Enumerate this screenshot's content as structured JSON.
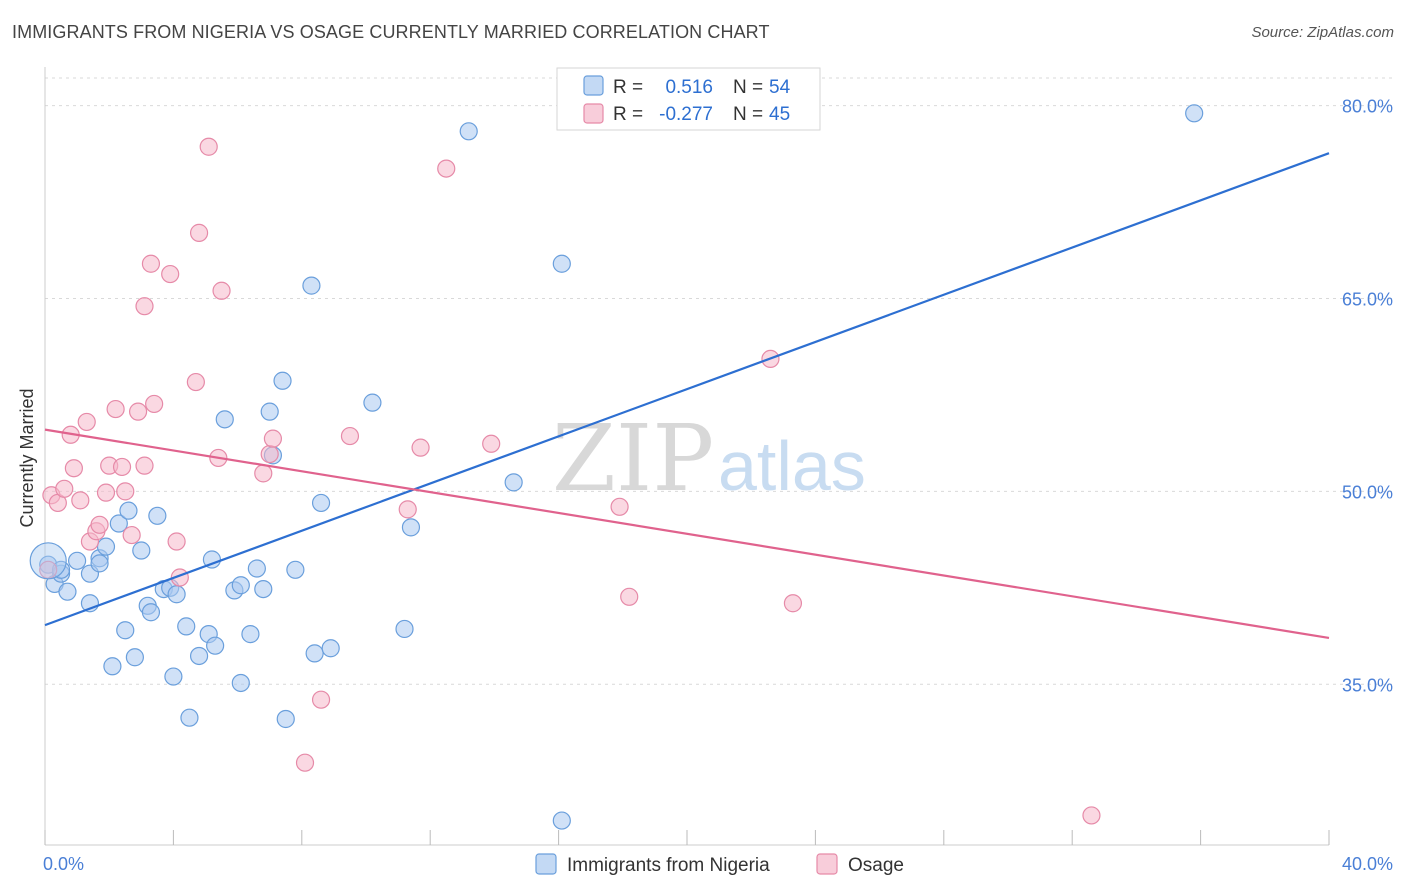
{
  "title": "IMMIGRANTS FROM NIGERIA VS OSAGE CURRENTLY MARRIED CORRELATION CHART",
  "source": "Source: ZipAtlas.com",
  "watermark": {
    "zip": "ZIP",
    "atlas": "atlas"
  },
  "colors": {
    "blue_fill": "#a9c9f0",
    "blue_stroke": "#6a9fdc",
    "blue_line": "#2d6fd1",
    "pink_fill": "#f5b8cb",
    "pink_stroke": "#e68aa8",
    "pink_line": "#e0628d",
    "grid": "#d9d9d9",
    "tick_label": "#4a7fd6"
  },
  "legend": {
    "r_label": "R =",
    "n_label": "N =",
    "items": [
      {
        "r": "0.516",
        "n": "54"
      },
      {
        "r": "-0.277",
        "n": "45"
      }
    ]
  },
  "chart_data": {
    "type": "scatter",
    "title": "IMMIGRANTS FROM NIGERIA VS OSAGE CURRENTLY MARRIED CORRELATION CHART",
    "xlabel": "",
    "ylabel": "Currently Married",
    "xlim": [
      0,
      40
    ],
    "ylim": [
      22.5,
      83
    ],
    "x_tick_labels": [
      "0.0%",
      "40.0%"
    ],
    "y_ticks": [
      35,
      50,
      65,
      80
    ],
    "y_tick_labels": [
      "35.0%",
      "50.0%",
      "65.0%",
      "80.0%"
    ],
    "grid": true,
    "legend_position": "top-center",
    "series": [
      {
        "name": "Immigrants from Nigeria",
        "color": "blue",
        "r": 0.516,
        "n": 54,
        "trendline": {
          "x": [
            0,
            40
          ],
          "y": [
            39.6,
            76.3
          ]
        },
        "points": [
          [
            0.1,
            44.3
          ],
          [
            0.3,
            42.8
          ],
          [
            0.5,
            43.6
          ],
          [
            0.7,
            42.2
          ],
          [
            0.5,
            43.9
          ],
          [
            1.0,
            44.6
          ],
          [
            1.4,
            43.6
          ],
          [
            1.4,
            41.3
          ],
          [
            1.7,
            44.8
          ],
          [
            1.7,
            44.4
          ],
          [
            1.9,
            45.7
          ],
          [
            2.3,
            47.5
          ],
          [
            2.6,
            48.5
          ],
          [
            2.5,
            39.2
          ],
          [
            2.1,
            36.4
          ],
          [
            2.8,
            37.1
          ],
          [
            3.0,
            45.4
          ],
          [
            3.2,
            41.1
          ],
          [
            3.3,
            40.6
          ],
          [
            3.5,
            48.1
          ],
          [
            3.7,
            42.4
          ],
          [
            3.9,
            42.5
          ],
          [
            4.1,
            42.0
          ],
          [
            4.0,
            35.6
          ],
          [
            4.4,
            39.5
          ],
          [
            4.8,
            37.2
          ],
          [
            5.1,
            38.9
          ],
          [
            5.2,
            44.7
          ],
          [
            5.3,
            38.0
          ],
          [
            5.6,
            55.6
          ],
          [
            5.9,
            42.3
          ],
          [
            6.1,
            42.7
          ],
          [
            6.1,
            35.1
          ],
          [
            6.4,
            38.9
          ],
          [
            6.6,
            44.0
          ],
          [
            6.8,
            42.4
          ],
          [
            7.0,
            56.2
          ],
          [
            7.1,
            52.8
          ],
          [
            7.4,
            58.6
          ],
          [
            7.5,
            32.3
          ],
          [
            7.8,
            43.9
          ],
          [
            8.3,
            66.0
          ],
          [
            8.4,
            37.4
          ],
          [
            8.6,
            49.1
          ],
          [
            8.9,
            37.8
          ],
          [
            10.2,
            56.9
          ],
          [
            11.2,
            39.3
          ],
          [
            11.4,
            47.2
          ],
          [
            13.2,
            78.0
          ],
          [
            14.6,
            50.7
          ],
          [
            16.1,
            67.7
          ],
          [
            16.1,
            24.4
          ],
          [
            35.8,
            79.4
          ],
          [
            4.5,
            32.4
          ]
        ]
      },
      {
        "name": "Osage",
        "color": "pink",
        "r": -0.277,
        "n": 45,
        "trendline": {
          "x": [
            0,
            40
          ],
          "y": [
            54.8,
            38.6
          ]
        },
        "points": [
          [
            0.1,
            43.9
          ],
          [
            0.2,
            49.7
          ],
          [
            0.4,
            49.1
          ],
          [
            0.6,
            50.2
          ],
          [
            0.8,
            54.4
          ],
          [
            0.9,
            51.8
          ],
          [
            1.1,
            49.3
          ],
          [
            1.3,
            55.4
          ],
          [
            1.4,
            46.1
          ],
          [
            1.6,
            46.9
          ],
          [
            1.7,
            47.4
          ],
          [
            1.9,
            49.9
          ],
          [
            2.0,
            52.0
          ],
          [
            2.2,
            56.4
          ],
          [
            2.4,
            51.9
          ],
          [
            2.5,
            50.0
          ],
          [
            2.7,
            46.6
          ],
          [
            2.9,
            56.2
          ],
          [
            3.1,
            52.0
          ],
          [
            3.3,
            67.7
          ],
          [
            3.4,
            56.8
          ],
          [
            3.1,
            64.4
          ],
          [
            3.9,
            66.9
          ],
          [
            4.1,
            46.1
          ],
          [
            4.2,
            43.3
          ],
          [
            4.7,
            58.5
          ],
          [
            4.8,
            70.1
          ],
          [
            5.1,
            76.8
          ],
          [
            5.4,
            52.6
          ],
          [
            5.5,
            65.6
          ],
          [
            6.8,
            51.4
          ],
          [
            7.0,
            52.9
          ],
          [
            7.1,
            54.1
          ],
          [
            8.1,
            28.9
          ],
          [
            8.6,
            33.8
          ],
          [
            9.5,
            54.3
          ],
          [
            11.3,
            48.6
          ],
          [
            11.7,
            53.4
          ],
          [
            12.5,
            75.1
          ],
          [
            13.9,
            53.7
          ],
          [
            17.9,
            48.8
          ],
          [
            18.2,
            41.8
          ],
          [
            22.6,
            60.3
          ],
          [
            23.3,
            41.3
          ],
          [
            32.6,
            24.8
          ]
        ]
      }
    ]
  },
  "bottom_legend": [
    {
      "label": "Immigrants from Nigeria",
      "color": "blue"
    },
    {
      "label": "Osage",
      "color": "pink"
    }
  ]
}
